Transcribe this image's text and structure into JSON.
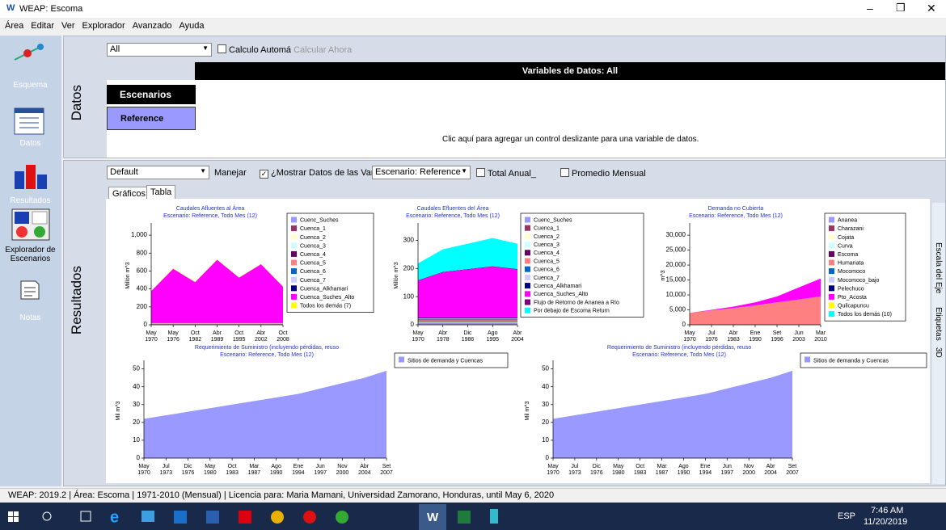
{
  "window": {
    "title": "WEAP: Escoma"
  },
  "menu": [
    "Área",
    "Editar",
    "Ver",
    "Explorador",
    "Avanzado",
    "Ayuda"
  ],
  "sidebar": [
    "Esquema",
    "Datos",
    "Resultados",
    "Explorador de Escenarios",
    "Notas"
  ],
  "datos": {
    "label": "Datos",
    "filter": "All",
    "auto_calc": "Calculo Automá",
    "calc_now": "Calcular Ahora",
    "header": "Variables de Datos: All",
    "scenarios_header": "Escenarios",
    "scenario": "Reference",
    "hint": "Clic aquí para agregar un control deslizante para una variable de datos."
  },
  "resultados": {
    "label": "Resultados",
    "view": "Default",
    "manage": "Manejar",
    "show_data": "¿Mostrar Datos de las Vari",
    "scenario_select": "Escenario: Reference",
    "annual_total": "Total Anual_",
    "monthly_avg": "Promedio Mensual",
    "tabs": [
      "Gráficos",
      "Tabla"
    ],
    "side_tabs": [
      "Escala del Eje",
      "Etiquetas",
      "3D"
    ]
  },
  "status_bar": [
    "WEAP: 2019.2",
    "Área: Escoma",
    "1971-2010 (Mensual)",
    "Licencia para: Maria Mamani, Universidad Zamorano, Honduras, until May 6, 2020"
  ],
  "taskbar": {
    "language": "ESP",
    "time": "7:46 AM",
    "date": "11/20/2019"
  },
  "chart_data": [
    {
      "type": "area",
      "stacked": true,
      "title": "Caudales Afluentes al Área",
      "subtitle": "Escenario: Reference,  Todo Mes (12)",
      "ylabel": "Millón m^3",
      "categories": [
        [
          "May",
          "1970"
        ],
        [
          "May",
          "1976"
        ],
        [
          "Oct",
          "1982"
        ],
        [
          "Abr",
          "1989"
        ],
        [
          "Oct",
          "1995"
        ],
        [
          "Abr",
          "2002"
        ],
        [
          "Oct",
          "2008"
        ]
      ],
      "ylim": [
        0,
        1100
      ],
      "yticks": [
        0,
        200,
        400,
        600,
        800,
        {
          "value": 1000,
          "label": "1,000"
        }
      ],
      "series": [
        {
          "name": "Cuenc_Suches",
          "color": "#9999ff",
          "values": [
            5,
            5,
            5,
            5,
            5,
            5,
            5
          ]
        },
        {
          "name": "Cuenca_1",
          "color": "#993366",
          "values": [
            3,
            3,
            3,
            3,
            3,
            3,
            3
          ]
        },
        {
          "name": "Cuenca_2",
          "color": "#ffffcc",
          "values": [
            2,
            2,
            2,
            2,
            2,
            2,
            2
          ]
        },
        {
          "name": "Cuenca_3",
          "color": "#ccffff",
          "values": [
            2,
            2,
            2,
            2,
            2,
            2,
            2
          ]
        },
        {
          "name": "Cuenca_4",
          "color": "#660066",
          "values": [
            3,
            3,
            3,
            3,
            3,
            3,
            3
          ]
        },
        {
          "name": "Cuenca_5",
          "color": "#ff8080",
          "values": [
            3,
            3,
            3,
            3,
            3,
            3,
            3
          ]
        },
        {
          "name": "Cuenca_6",
          "color": "#0066cc",
          "values": [
            3,
            3,
            3,
            3,
            3,
            3,
            3
          ]
        },
        {
          "name": "Cuenca_7",
          "color": "#ccccff",
          "values": [
            2,
            2,
            2,
            2,
            2,
            2,
            2
          ]
        },
        {
          "name": "Cuenca_Alkhamari",
          "color": "#000080",
          "values": [
            3,
            3,
            3,
            3,
            3,
            3,
            3
          ]
        },
        {
          "name": "Cuenca_Suches_Alto",
          "color": "#ff00ff",
          "values": [
            350,
            600,
            450,
            700,
            500,
            650,
            400
          ]
        },
        {
          "name": "Todos los demás (7)",
          "color": "#ffff00",
          "values": [
            4,
            4,
            4,
            4,
            4,
            4,
            4
          ]
        }
      ]
    },
    {
      "type": "area",
      "stacked": true,
      "title": "Caudales Efluentes del Área",
      "subtitle": "Escenario: Reference,  Todo Mes (12)",
      "ylabel": "Millón m^3",
      "categories": [
        [
          "May",
          "1970"
        ],
        [
          "Abr",
          "1978"
        ],
        [
          "Dic",
          "1986"
        ],
        [
          "Ago",
          "1995"
        ],
        [
          "Abr",
          "2004"
        ]
      ],
      "ylim": [
        0,
        350
      ],
      "yticks": [
        0,
        100,
        200,
        300
      ],
      "series": [
        {
          "name": "Cuenc_Suches",
          "color": "#9999ff",
          "values": [
            5,
            5,
            5,
            5,
            5
          ]
        },
        {
          "name": "Cuenca_1",
          "color": "#993366",
          "values": [
            3,
            3,
            3,
            3,
            3
          ]
        },
        {
          "name": "Cuenca_2",
          "color": "#ffffcc",
          "values": [
            2,
            2,
            2,
            2,
            2
          ]
        },
        {
          "name": "Cuenca_3",
          "color": "#ccffff",
          "values": [
            2,
            2,
            2,
            2,
            2
          ]
        },
        {
          "name": "Cuenca_4",
          "color": "#660066",
          "values": [
            3,
            3,
            3,
            3,
            3
          ]
        },
        {
          "name": "Cuenca_5",
          "color": "#ff8080",
          "values": [
            3,
            3,
            3,
            3,
            3
          ]
        },
        {
          "name": "Cuenca_6",
          "color": "#0066cc",
          "values": [
            3,
            3,
            3,
            3,
            3
          ]
        },
        {
          "name": "Cuenca_7",
          "color": "#ccccff",
          "values": [
            2,
            2,
            2,
            2,
            2
          ]
        },
        {
          "name": "Cuenca_Alkhamari",
          "color": "#000080",
          "values": [
            3,
            3,
            3,
            3,
            3
          ]
        },
        {
          "name": "Cuenca_Suches_Alto",
          "color": "#ff00ff",
          "values": [
            130,
            160,
            170,
            180,
            170
          ]
        },
        {
          "name": "Flujo de Retorno de Ananea a Río",
          "color": "#800080",
          "values": [
            2,
            2,
            2,
            2,
            2
          ]
        },
        {
          "name": "Por debajo de Escoma Return",
          "color": "#00ffff",
          "values": [
            60,
            80,
            90,
            100,
            90
          ]
        }
      ]
    },
    {
      "type": "area",
      "stacked": true,
      "title": "Demanda no Cubierta",
      "subtitle": "Escenario: Reference,  Todo Mes (12)",
      "ylabel": "m^3",
      "categories": [
        [
          "May",
          "1970"
        ],
        [
          "Jul",
          "1976"
        ],
        [
          "Abr",
          "1983"
        ],
        [
          "Ene",
          "1990"
        ],
        [
          "Set",
          "1996"
        ],
        [
          "Jun",
          "2003"
        ],
        [
          "Mar",
          "2010"
        ]
      ],
      "ylim": [
        0,
        33000
      ],
      "yticks": [
        0,
        {
          "value": 5000,
          "label": "5,000"
        },
        {
          "value": 10000,
          "label": "10,000"
        },
        {
          "value": 15000,
          "label": "15,000"
        },
        {
          "value": 20000,
          "label": "20,000"
        },
        {
          "value": 25000,
          "label": "25,000"
        },
        {
          "value": 30000,
          "label": "30,000"
        }
      ],
      "series": [
        {
          "name": "Ananea",
          "color": "#9999ff",
          "values": [
            0,
            0,
            0,
            0,
            0,
            0,
            0
          ]
        },
        {
          "name": "Charazani",
          "color": "#993366",
          "values": [
            0,
            0,
            0,
            0,
            0,
            0,
            0
          ]
        },
        {
          "name": "Cojata",
          "color": "#ffffcc",
          "values": [
            0,
            0,
            0,
            0,
            0,
            0,
            0
          ]
        },
        {
          "name": "Curva",
          "color": "#ccffff",
          "values": [
            0,
            0,
            0,
            0,
            0,
            0,
            0
          ]
        },
        {
          "name": "Escoma",
          "color": "#660066",
          "values": [
            0,
            0,
            0,
            0,
            0,
            0,
            0
          ]
        },
        {
          "name": "Humanata",
          "color": "#ff8080",
          "values": [
            4000,
            4800,
            5600,
            6500,
            7500,
            8500,
            9500
          ]
        },
        {
          "name": "Mocomoco",
          "color": "#0066cc",
          "values": [
            0,
            0,
            0,
            0,
            0,
            0,
            0
          ]
        },
        {
          "name": "Mocomoco_bajo",
          "color": "#ccccff",
          "values": [
            0,
            0,
            0,
            0,
            0,
            0,
            0
          ]
        },
        {
          "name": "Pelechuco",
          "color": "#000080",
          "values": [
            0,
            0,
            0,
            0,
            0,
            0,
            0
          ]
        },
        {
          "name": "Pto_Acosta",
          "color": "#ff00ff",
          "values": [
            0,
            200,
            500,
            1000,
            2000,
            4000,
            6000
          ]
        },
        {
          "name": "Quilcapuncu",
          "color": "#ffff00",
          "values": [
            0,
            0,
            0,
            0,
            0,
            0,
            0
          ]
        },
        {
          "name": "Todos los demás (10)",
          "color": "#00ffff",
          "values": [
            0,
            0,
            0,
            0,
            0,
            0,
            0
          ]
        }
      ]
    },
    {
      "type": "area",
      "stacked": true,
      "title": "Requerimiento de Suministro (incluyendo pérdidas, reuso",
      "subtitle": "Escenario: Reference,  Todo Mes (12)",
      "ylabel": "Mil m^3",
      "categories": [
        [
          "May",
          "1970"
        ],
        [
          "Jul",
          "1973"
        ],
        [
          "Dic",
          "1976"
        ],
        [
          "May",
          "1980"
        ],
        [
          "Oct",
          "1983"
        ],
        [
          "Mar",
          "1987"
        ],
        [
          "Ago",
          "1990"
        ],
        [
          "Ene",
          "1994"
        ],
        [
          "Jun",
          "1997"
        ],
        [
          "Nov",
          "2000"
        ],
        [
          "Abr",
          "2004"
        ],
        [
          "Set",
          "2007"
        ]
      ],
      "ylim": [
        0,
        53
      ],
      "yticks": [
        0,
        10,
        20,
        30,
        40,
        50
      ],
      "series": [
        {
          "name": "Sitios de demanda y Cuencas",
          "color": "#9999ff",
          "values": [
            22,
            24,
            26,
            28,
            30,
            32,
            34,
            36,
            39,
            42,
            45,
            49
          ]
        }
      ]
    },
    {
      "type": "area",
      "stacked": true,
      "title": "Requerimiento de Suministro (incluyendo pérdidas, reuso",
      "subtitle": "Escenario: Reference,  Todo Mes (12)",
      "ylabel": "Mil m^3",
      "categories": [
        [
          "May",
          "1970"
        ],
        [
          "Jul",
          "1973"
        ],
        [
          "Dic",
          "1976"
        ],
        [
          "May",
          "1980"
        ],
        [
          "Oct",
          "1983"
        ],
        [
          "Mar",
          "1987"
        ],
        [
          "Ago",
          "1990"
        ],
        [
          "Ene",
          "1994"
        ],
        [
          "Jun",
          "1997"
        ],
        [
          "Nov",
          "2000"
        ],
        [
          "Abr",
          "2004"
        ],
        [
          "Set",
          "2007"
        ]
      ],
      "ylim": [
        0,
        53
      ],
      "yticks": [
        0,
        10,
        20,
        30,
        40,
        50
      ],
      "series": [
        {
          "name": "Sitios de demanda y Cuencas",
          "color": "#9999ff",
          "values": [
            22,
            24,
            26,
            28,
            30,
            32,
            34,
            36,
            39,
            42,
            45,
            49
          ]
        }
      ]
    }
  ]
}
